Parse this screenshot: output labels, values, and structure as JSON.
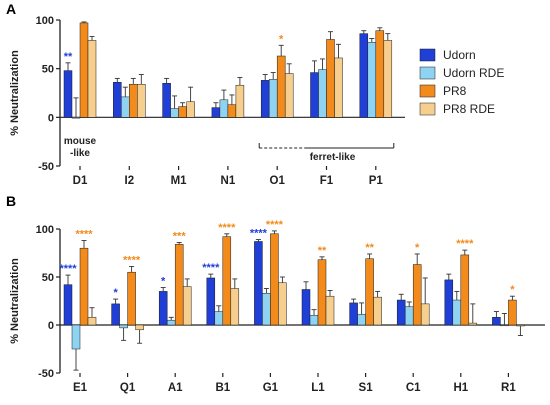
{
  "legend": [
    {
      "name": "Udorn",
      "color": "#1f3fd6"
    },
    {
      "name": "Udorn RDE",
      "color": "#8fd3f3"
    },
    {
      "name": "PR8",
      "color": "#f28a1c"
    },
    {
      "name": "PR8 RDE",
      "color": "#f6cf8e"
    }
  ],
  "chart_data": [
    {
      "panel": "A",
      "type": "bar",
      "ylabel": "% Neutralization",
      "ylim": [
        -50,
        100
      ],
      "yticks": [
        "-50",
        "0",
        "50",
        "100"
      ],
      "categories": [
        "D1",
        "I2",
        "M1",
        "N1",
        "O1",
        "F1",
        "P1"
      ],
      "series": [
        {
          "name": "Udorn",
          "values": [
            48,
            36,
            35,
            10,
            38,
            46,
            86
          ],
          "errors": [
            8,
            4,
            5,
            5,
            6,
            12,
            3
          ]
        },
        {
          "name": "Udorn RDE",
          "values": [
            0,
            21,
            9,
            18,
            39,
            49,
            77
          ],
          "errors": [
            20,
            10,
            13,
            10,
            7,
            11,
            4
          ]
        },
        {
          "name": "PR8",
          "values": [
            97,
            34,
            11,
            13,
            63,
            80,
            89
          ],
          "errors": [
            1,
            6,
            4,
            10,
            11,
            8,
            3
          ]
        },
        {
          "name": "PR8 RDE",
          "values": [
            79,
            34,
            16,
            33,
            45,
            61,
            79
          ],
          "errors": [
            4,
            10,
            15,
            8,
            10,
            14,
            7
          ]
        }
      ],
      "significance": [
        {
          "category": "D1",
          "series": "Udorn",
          "text": "**"
        },
        {
          "category": "O1",
          "series": "PR8",
          "text": "*"
        }
      ],
      "annotations": {
        "mouse_like": [
          "mouse",
          "-like"
        ],
        "ferret_like": "ferret-like"
      }
    },
    {
      "panel": "B",
      "type": "bar",
      "ylabel": "% Neutralization",
      "ylim": [
        -50,
        100
      ],
      "yticks": [
        "-50",
        "0",
        "50",
        "100"
      ],
      "categories": [
        "E1",
        "Q1",
        "A1",
        "B1",
        "G1",
        "L1",
        "S1",
        "C1",
        "H1",
        "R1"
      ],
      "series": [
        {
          "name": "Udorn",
          "values": [
            42,
            22,
            35,
            49,
            87,
            37,
            23,
            26,
            47,
            8
          ],
          "errors": [
            10,
            5,
            4,
            4,
            2,
            8,
            4,
            6,
            6,
            6
          ]
        },
        {
          "name": "Udorn RDE",
          "values": [
            -25,
            -3,
            5,
            14,
            33,
            10,
            11,
            19,
            26,
            0
          ],
          "errors": [
            22,
            13,
            3,
            6,
            5,
            6,
            12,
            5,
            9,
            12
          ]
        },
        {
          "name": "PR8",
          "values": [
            80,
            55,
            84,
            92,
            95,
            68,
            69,
            63,
            73,
            26
          ],
          "errors": [
            8,
            6,
            2,
            3,
            3,
            3,
            5,
            11,
            5,
            4
          ]
        },
        {
          "name": "PR8 RDE",
          "values": [
            8,
            -5,
            40,
            38,
            44,
            30,
            29,
            22,
            2,
            -1
          ],
          "errors": [
            10,
            14,
            8,
            10,
            6,
            6,
            6,
            27,
            20,
            10
          ]
        }
      ],
      "significance": [
        {
          "category": "E1",
          "series": "Udorn",
          "text": "****"
        },
        {
          "category": "E1",
          "series": "PR8",
          "text": "****"
        },
        {
          "category": "Q1",
          "series": "Udorn",
          "text": "*"
        },
        {
          "category": "Q1",
          "series": "PR8",
          "text": "****"
        },
        {
          "category": "A1",
          "series": "Udorn",
          "text": "*"
        },
        {
          "category": "A1",
          "series": "PR8",
          "text": "***"
        },
        {
          "category": "B1",
          "series": "Udorn",
          "text": "****"
        },
        {
          "category": "B1",
          "series": "PR8",
          "text": "****"
        },
        {
          "category": "G1",
          "series": "Udorn",
          "text": "****"
        },
        {
          "category": "G1",
          "series": "PR8",
          "text": "****"
        },
        {
          "category": "L1",
          "series": "PR8",
          "text": "**"
        },
        {
          "category": "S1",
          "series": "PR8",
          "text": "**"
        },
        {
          "category": "C1",
          "series": "PR8",
          "text": "*"
        },
        {
          "category": "H1",
          "series": "PR8",
          "text": "****"
        },
        {
          "category": "R1",
          "series": "PR8",
          "text": "*"
        }
      ]
    }
  ]
}
